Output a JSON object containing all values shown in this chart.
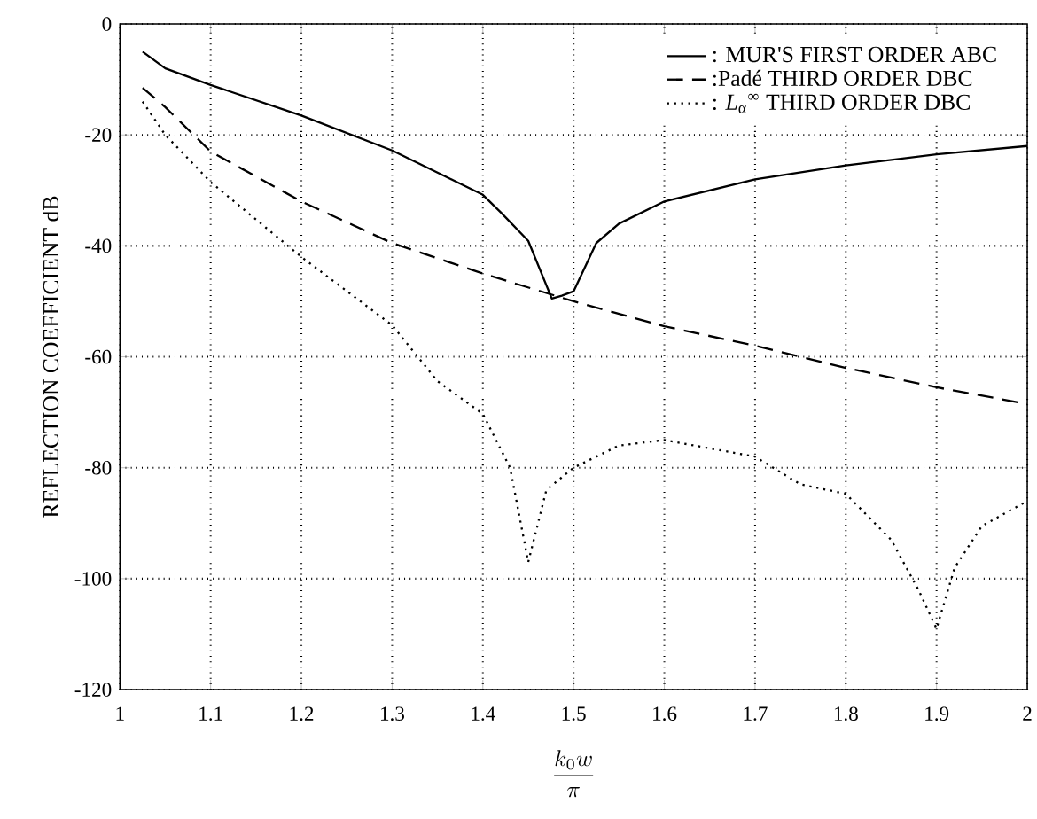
{
  "chart_data": {
    "type": "line",
    "xlabel": "\\frac{k_0 w}{\\pi}",
    "ylabel": "REFLECTION COEFFICIENT dB",
    "xlim": [
      1,
      2
    ],
    "ylim": [
      -120,
      0
    ],
    "xticks": [
      1,
      {
        "value": 1.1,
        "label": "1.1"
      },
      {
        "value": 1.2,
        "label": "1.2"
      },
      {
        "value": 1.3,
        "label": "1.3"
      },
      {
        "value": 1.4,
        "label": "1.4"
      },
      {
        "value": 1.5,
        "label": "1.5"
      },
      {
        "value": 1.6,
        "label": "1.6"
      },
      {
        "value": 1.7,
        "label": "1.7"
      },
      {
        "value": 1.8,
        "label": "1.8"
      },
      {
        "value": 1.9,
        "label": "1.9"
      },
      2
    ],
    "yticks": [
      -120,
      -100,
      -80,
      -60,
      -40,
      -20,
      0
    ],
    "grid": true,
    "legend": "top right",
    "series": [
      {
        "name": ": MUR'S FIRST ORDER ABC",
        "color": "#000000",
        "line_style": "solid",
        "x": [
          1.025,
          1.05,
          1.1,
          1.2,
          1.3,
          1.32,
          1.4,
          1.42,
          1.45,
          1.476,
          1.487,
          1.5,
          1.525,
          1.55,
          1.6,
          1.7,
          1.8,
          1.9,
          2.0
        ],
        "values": [
          -5,
          -8,
          -11,
          -16.5,
          -22.8,
          -24.4,
          -30.8,
          -34,
          -39.1,
          -49.5,
          -49,
          -48.2,
          -39.5,
          -36,
          -32,
          -28,
          -25.5,
          -23.5,
          -22
        ]
      },
      {
        "name": ":Padé THIRD ORDER DBC",
        "color": "#000000",
        "line_style": "dashed",
        "x": [
          1.025,
          1.05,
          1.1,
          1.2,
          1.3,
          1.4,
          1.5,
          1.6,
          1.7,
          1.8,
          1.9,
          2.0
        ],
        "values": [
          -11.5,
          -15,
          -23,
          -32,
          -39.5,
          -45,
          -50,
          -54.5,
          -58,
          -62,
          -65.5,
          -68.5
        ]
      },
      {
        "name": ": *L*$_{α}$$^{∞}$ THIRD ORDER DBC",
        "color": "#000000",
        "line_style": "dotted",
        "x": [
          1.025,
          1.05,
          1.1,
          1.2,
          1.3,
          1.35,
          1.4,
          1.43,
          1.45,
          1.47,
          1.5,
          1.55,
          1.6,
          1.7,
          1.75,
          1.8,
          1.85,
          1.88,
          1.9,
          1.92,
          1.95,
          2.0
        ],
        "values": [
          -14,
          -20,
          -28.5,
          -42,
          -54.3,
          -64.4,
          -70.3,
          -80,
          -97,
          -84,
          -80,
          -76,
          -75,
          -78,
          -83,
          -84.7,
          -93,
          -102,
          -109,
          -98,
          -90.5,
          -86
        ]
      }
    ]
  }
}
